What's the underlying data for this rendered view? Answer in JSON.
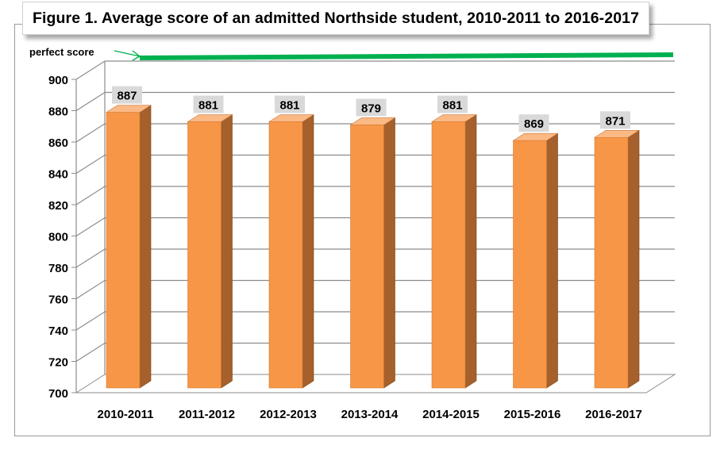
{
  "chart_data": {
    "type": "bar",
    "title": "Figure 1. Average score of an admitted Northside student, 2010-2011 to 2016-2017",
    "categories": [
      "2010-2011",
      "2011-2012",
      "2012-2013",
      "2013-2014",
      "2014-2015",
      "2015-2016",
      "2016-2017"
    ],
    "values": [
      887,
      881,
      881,
      879,
      881,
      869,
      871
    ],
    "ylim": [
      700,
      900
    ],
    "yticks": [
      "700",
      "720",
      "740",
      "760",
      "780",
      "800",
      "820",
      "840",
      "860",
      "880",
      "900"
    ],
    "xlabel": "",
    "ylabel": "",
    "grid": true,
    "legend": "none",
    "reference_line": {
      "label": "perfect score",
      "color": "#00b050"
    },
    "colors": {
      "bar_front": "#f79646",
      "bar_side": "#a5602b",
      "bar_top": "#fbb985",
      "label_bg": "#d9d9d9",
      "arrow": "#00b050"
    }
  }
}
